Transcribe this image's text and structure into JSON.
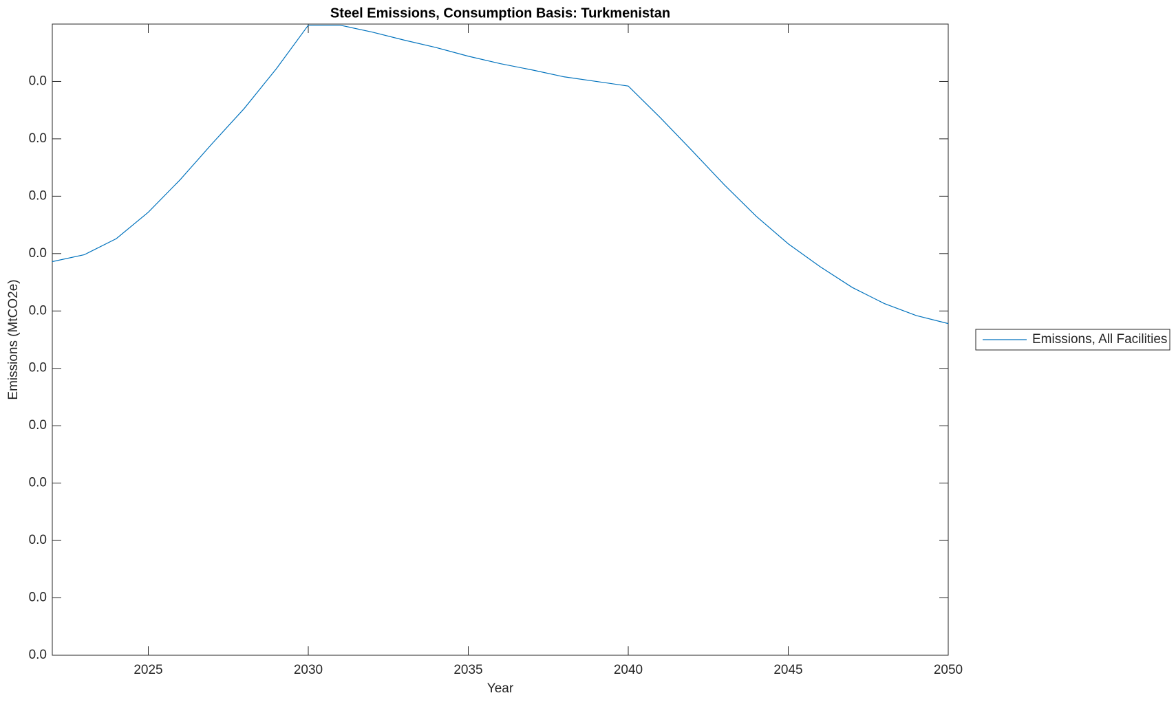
{
  "chart_data": {
    "type": "line",
    "title": "Steel Emissions, Consumption Basis: Turkmenistan",
    "x_label": "Year",
    "y_label": "Emissions (MtCO2e)",
    "x": [
      2022,
      2023,
      2024,
      2025,
      2026,
      2027,
      2028,
      2029,
      2030,
      2031,
      2032,
      2033,
      2034,
      2035,
      2036,
      2037,
      2038,
      2039,
      2040,
      2041,
      2042,
      2043,
      2044,
      2045,
      2046,
      2047,
      2048,
      2049,
      2050
    ],
    "series": [
      {
        "name": "Emissions, All Facilities",
        "color": "#0072bd",
        "values": [
          0.00686,
          0.00698,
          0.00726,
          0.00772,
          0.00829,
          0.00892,
          0.00953,
          0.01022,
          0.01098,
          0.01098,
          0.01086,
          0.01072,
          0.01059,
          0.01044,
          0.01031,
          0.0102,
          0.01008,
          0.01,
          0.00992,
          0.00937,
          0.00879,
          0.0082,
          0.00765,
          0.00717,
          0.00677,
          0.00641,
          0.00613,
          0.00592,
          0.00578
        ]
      }
    ],
    "xlim": [
      2022,
      2050
    ],
    "xticks": [
      2025,
      2030,
      2035,
      2040,
      2045,
      2050
    ],
    "ylim": [
      0,
      0.011
    ],
    "yticks": [
      {
        "value": 0,
        "label": "0.0"
      },
      {
        "value": 0.001,
        "label": "0.0"
      },
      {
        "value": 0.002,
        "label": "0.0"
      },
      {
        "value": 0.003,
        "label": "0.0"
      },
      {
        "value": 0.004,
        "label": "0.0"
      },
      {
        "value": 0.005,
        "label": "0.0"
      },
      {
        "value": 0.006,
        "label": "0.0"
      },
      {
        "value": 0.007,
        "label": "0.0"
      },
      {
        "value": 0.008,
        "label": "0.0"
      },
      {
        "value": 0.009,
        "label": "0.0"
      },
      {
        "value": 0.01,
        "label": "0.0"
      }
    ],
    "grid": false,
    "legend": "outside-right"
  }
}
